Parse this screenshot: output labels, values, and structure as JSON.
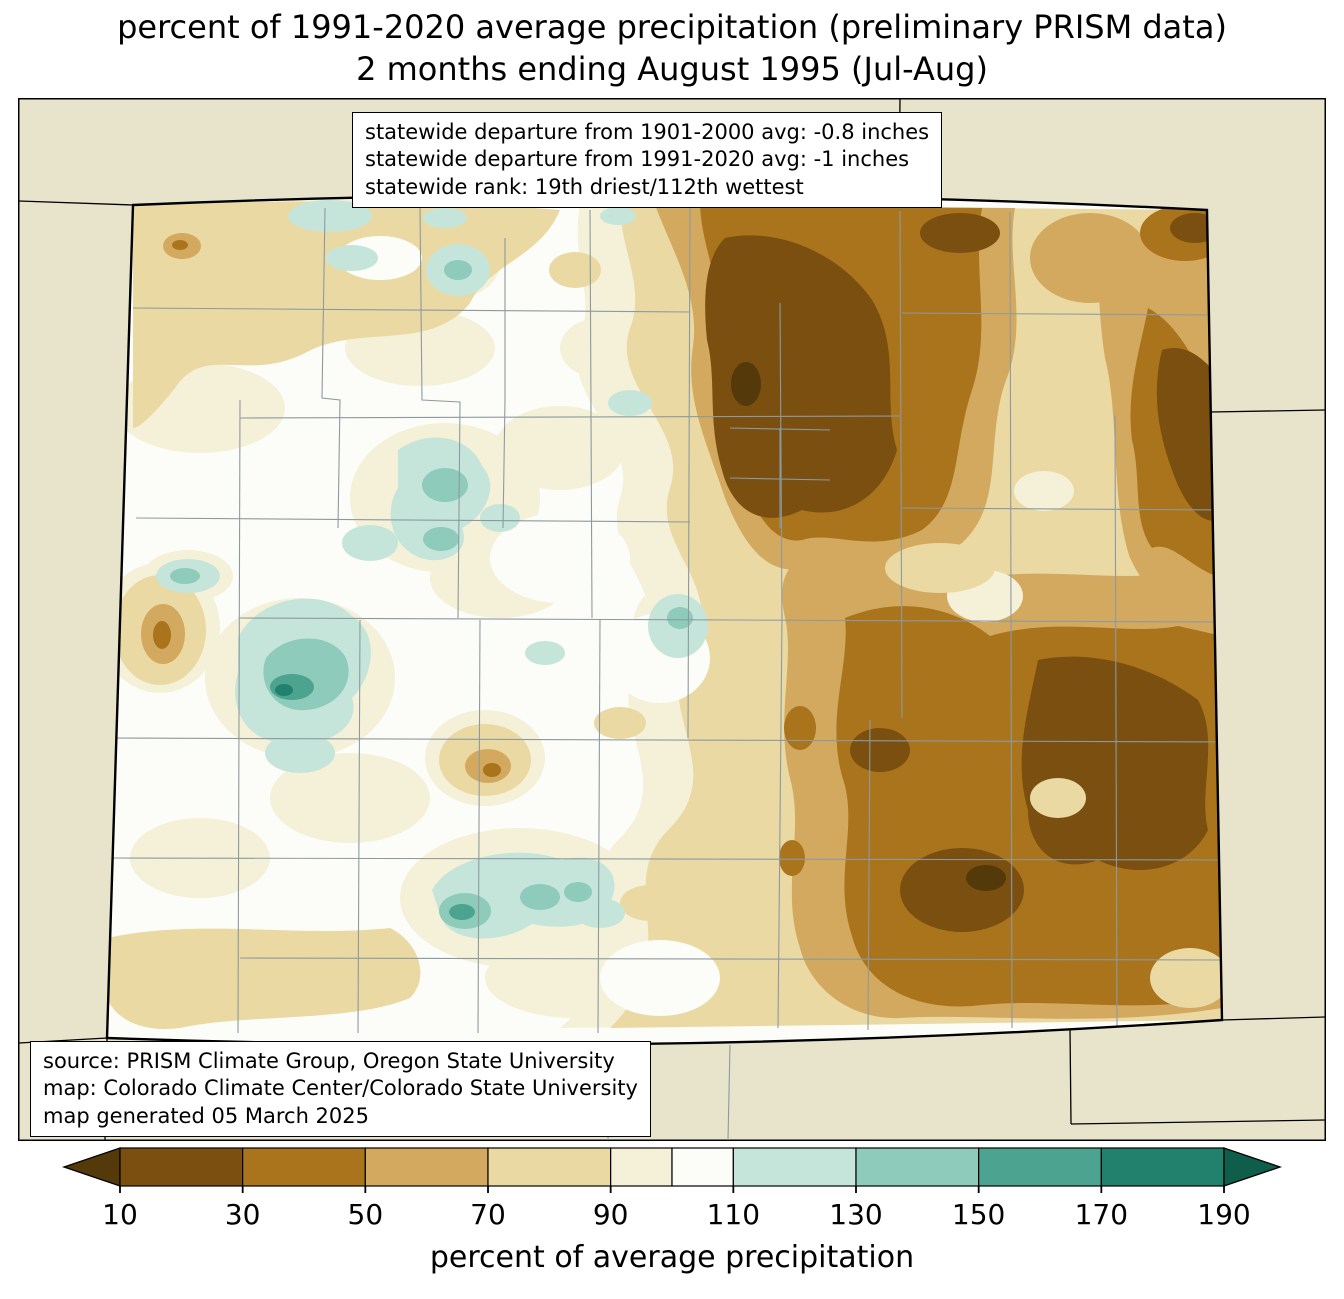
{
  "title": {
    "line1": "percent of 1991-2020 average precipitation (preliminary PRISM data)",
    "line2": "2 months ending August 1995 (Jul-Aug)"
  },
  "stats_box": {
    "line1": "statewide departure from 1901-2000 avg: -0.8 inches",
    "line2": "statewide departure from 1991-2020 avg: -1 inches",
    "line3": "statewide rank: 19th driest/112th wettest"
  },
  "source_box": {
    "line1": "source: PRISM Climate Group, Oregon State University",
    "line2": "map: Colorado Climate Center/Colorado State University",
    "line3": "map generated 05 March 2025"
  },
  "colorbar": {
    "label": "percent of average precipitation",
    "ticks": [
      10,
      30,
      50,
      70,
      90,
      110,
      130,
      150,
      170,
      190
    ],
    "range": [
      10,
      190
    ],
    "under_arrow_color": "#543a0a",
    "over_arrow_color": "#0f5e4c",
    "segments": [
      {
        "from": 10,
        "to": 30,
        "color": "#7a4f10"
      },
      {
        "from": 30,
        "to": 50,
        "color": "#a9741c"
      },
      {
        "from": 50,
        "to": 70,
        "color": "#d3a95f"
      },
      {
        "from": 70,
        "to": 90,
        "color": "#ead9a3"
      },
      {
        "from": 90,
        "to": 100,
        "color": "#f5f0d8"
      },
      {
        "from": 100,
        "to": 110,
        "color": "#fcfdf8"
      },
      {
        "from": 110,
        "to": 130,
        "color": "#c6e5da"
      },
      {
        "from": 130,
        "to": 150,
        "color": "#8ecbba"
      },
      {
        "from": 150,
        "to": 170,
        "color": "#4ba390"
      },
      {
        "from": 170,
        "to": 190,
        "color": "#22816d"
      }
    ]
  },
  "map": {
    "region": "Colorado",
    "palette": {
      "background_outside_state": "#e8e4cb",
      "white_100_110": "#fcfdf8",
      "cream_90_100": "#f5f0d8",
      "tan_light_70_90": "#ead9a3",
      "tan_50_70": "#d3a95f",
      "brown_30_50": "#a9741c",
      "brown_dark_10_30": "#7a4f10",
      "brown_darkest_under_10": "#543a0a",
      "teal_pale_110_130": "#c6e5da",
      "teal_130_150": "#8ecbba",
      "teal_mid_150_170": "#4ba390",
      "teal_dark_170_190": "#22816d",
      "county_line": "#8c9aa0",
      "state_line": "#000000"
    }
  }
}
